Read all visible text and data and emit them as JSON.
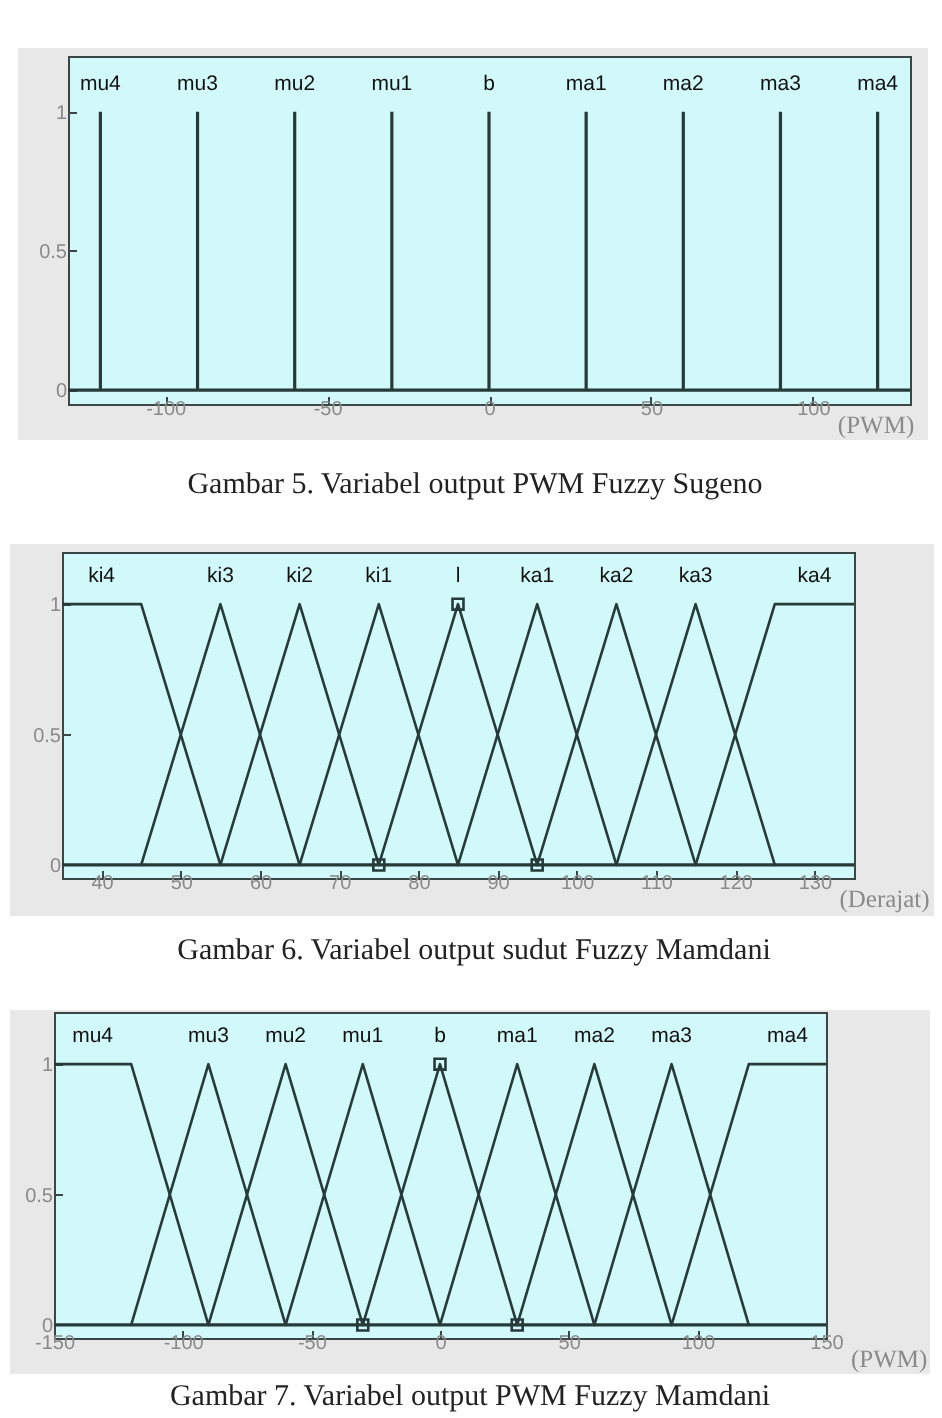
{
  "chart_data": [
    {
      "type": "bar",
      "title": "Gambar 5. Variabel output PWM Fuzzy Sugeno",
      "xlabel": "(PWM)",
      "xlim": [
        -130,
        130
      ],
      "xticks": [
        -100,
        -50,
        0,
        50,
        100
      ],
      "ylim": [
        -0.05,
        1.2
      ],
      "yticks": [
        0,
        0.5,
        1
      ],
      "ref_lines": [
        {
          "axis": "y",
          "value": 0,
          "color": "#263a3a"
        }
      ],
      "series": [
        {
          "name": "mu4",
          "color": "#263a3a",
          "x": [
            -120
          ],
          "values": [
            1
          ]
        },
        {
          "name": "mu3",
          "color": "#263a3a",
          "x": [
            -90
          ],
          "values": [
            1
          ]
        },
        {
          "name": "mu2",
          "color": "#263a3a",
          "x": [
            -60
          ],
          "values": [
            1
          ]
        },
        {
          "name": "mu1",
          "color": "#263a3a",
          "x": [
            -30
          ],
          "values": [
            1
          ]
        },
        {
          "name": "b",
          "color": "#263a3a",
          "x": [
            0
          ],
          "values": [
            1
          ]
        },
        {
          "name": "ma1",
          "color": "#263a3a",
          "x": [
            30
          ],
          "values": [
            1
          ]
        },
        {
          "name": "ma2",
          "color": "#263a3a",
          "x": [
            60
          ],
          "values": [
            1
          ]
        },
        {
          "name": "ma3",
          "color": "#263a3a",
          "x": [
            90
          ],
          "values": [
            1
          ]
        },
        {
          "name": "ma4",
          "color": "#263a3a",
          "x": [
            120
          ],
          "values": [
            1
          ]
        }
      ]
    },
    {
      "type": "line",
      "title": "Gambar 6. Variabel output sudut Fuzzy Mamdani",
      "xlabel": "(Derajat)",
      "xlim": [
        35,
        135
      ],
      "xticks": [
        40,
        50,
        60,
        70,
        80,
        90,
        100,
        110,
        120,
        130
      ],
      "ylim": [
        -0.05,
        1.2
      ],
      "yticks": [
        0,
        0.5,
        1
      ],
      "ref_lines": [
        {
          "axis": "y",
          "value": 0,
          "color": "#263a3a"
        }
      ],
      "series": [
        {
          "name": "ki4",
          "color": "#263a3a",
          "x": [
            35,
            45,
            55
          ],
          "values": [
            1,
            1,
            0
          ]
        },
        {
          "name": "ki3",
          "color": "#263a3a",
          "x": [
            45,
            55,
            65
          ],
          "values": [
            0,
            1,
            0
          ]
        },
        {
          "name": "ki2",
          "color": "#263a3a",
          "x": [
            55,
            65,
            75
          ],
          "values": [
            0,
            1,
            0
          ]
        },
        {
          "name": "ki1",
          "color": "#263a3a",
          "x": [
            65,
            75,
            85
          ],
          "values": [
            0,
            1,
            0
          ]
        },
        {
          "name": "l",
          "color": "#263a3a",
          "marker": "square",
          "x": [
            75,
            85,
            95
          ],
          "values": [
            0,
            1,
            0
          ]
        },
        {
          "name": "ka1",
          "color": "#263a3a",
          "x": [
            85,
            95,
            105
          ],
          "values": [
            0,
            1,
            0
          ]
        },
        {
          "name": "ka2",
          "color": "#263a3a",
          "x": [
            95,
            105,
            115
          ],
          "values": [
            0,
            1,
            0
          ]
        },
        {
          "name": "ka3",
          "color": "#263a3a",
          "x": [
            105,
            115,
            125
          ],
          "values": [
            0,
            1,
            0
          ]
        },
        {
          "name": "ka4",
          "color": "#263a3a",
          "x": [
            115,
            125,
            135
          ],
          "values": [
            0,
            1,
            1
          ]
        }
      ]
    },
    {
      "type": "line",
      "title": "Gambar 7. Variabel output PWM Fuzzy Mamdani",
      "xlabel": "(PWM)",
      "xlim": [
        -150,
        150
      ],
      "xticks": [
        -150,
        -100,
        -50,
        0,
        50,
        100,
        150
      ],
      "ylim": [
        -0.05,
        1.2
      ],
      "yticks": [
        0,
        0.5,
        1
      ],
      "ref_lines": [
        {
          "axis": "y",
          "value": 0,
          "color": "#263a3a"
        }
      ],
      "series": [
        {
          "name": "mu4",
          "color": "#263a3a",
          "x": [
            -150,
            -120,
            -90
          ],
          "values": [
            1,
            1,
            0
          ]
        },
        {
          "name": "mu3",
          "color": "#263a3a",
          "x": [
            -120,
            -90,
            -60
          ],
          "values": [
            0,
            1,
            0
          ]
        },
        {
          "name": "mu2",
          "color": "#263a3a",
          "x": [
            -90,
            -60,
            -30
          ],
          "values": [
            0,
            1,
            0
          ]
        },
        {
          "name": "mu1",
          "color": "#263a3a",
          "x": [
            -60,
            -30,
            0
          ],
          "values": [
            0,
            1,
            0
          ]
        },
        {
          "name": "b",
          "color": "#263a3a",
          "marker": "square",
          "x": [
            -30,
            0,
            30
          ],
          "values": [
            0,
            1,
            0
          ]
        },
        {
          "name": "ma1",
          "color": "#263a3a",
          "x": [
            0,
            30,
            60
          ],
          "values": [
            0,
            1,
            0
          ]
        },
        {
          "name": "ma2",
          "color": "#263a3a",
          "x": [
            30,
            60,
            90
          ],
          "values": [
            0,
            1,
            0
          ]
        },
        {
          "name": "ma3",
          "color": "#263a3a",
          "x": [
            60,
            90,
            120
          ],
          "values": [
            0,
            1,
            0
          ]
        },
        {
          "name": "ma4",
          "color": "#263a3a",
          "x": [
            90,
            120,
            150
          ],
          "values": [
            0,
            1,
            1
          ]
        }
      ]
    }
  ]
}
